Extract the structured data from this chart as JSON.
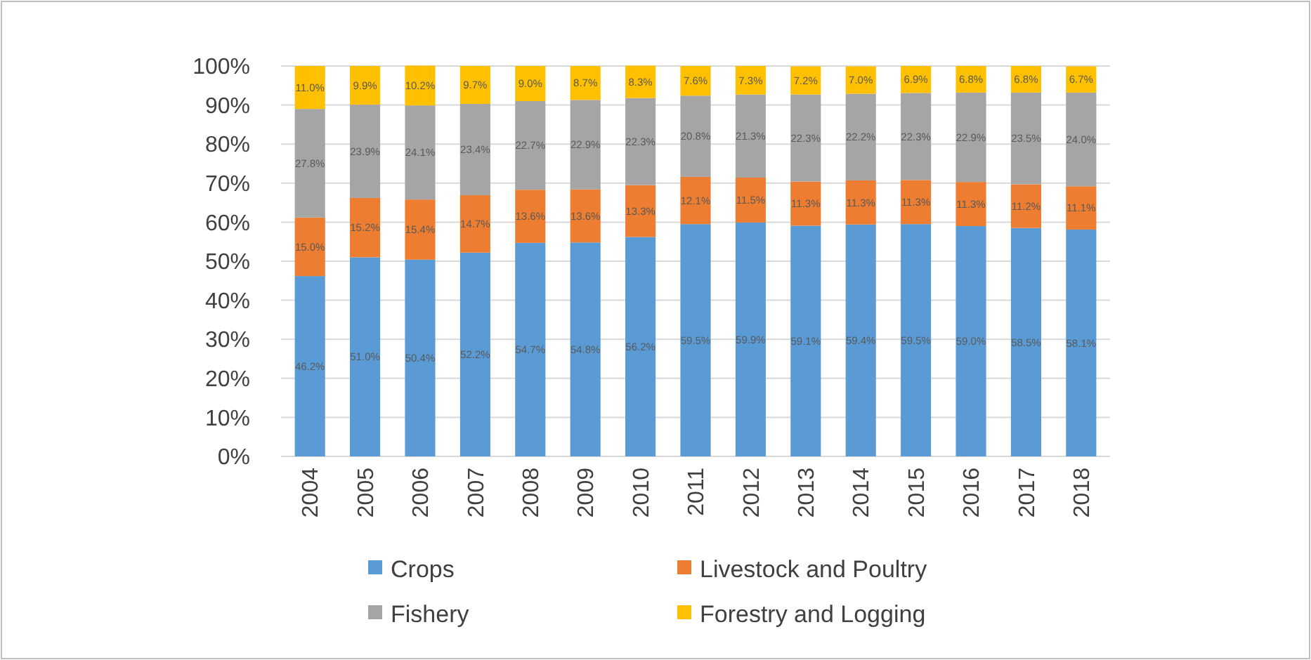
{
  "chart_data": {
    "type": "bar",
    "stacked": true,
    "categories": [
      "2004",
      "2005",
      "2006",
      "2007",
      "2008",
      "2009",
      "2010",
      "2011",
      "2012",
      "2013",
      "2014",
      "2015",
      "2016",
      "2017",
      "2018"
    ],
    "series": [
      {
        "name": "Crops",
        "color": "#5b9bd5",
        "values": [
          46.2,
          51.0,
          50.4,
          52.2,
          54.7,
          54.8,
          56.2,
          59.5,
          59.9,
          59.1,
          59.4,
          59.5,
          59.0,
          58.5,
          58.1
        ],
        "value_labels": [
          "46.2%",
          "51.0%",
          "50.4%",
          "52.2%",
          "54.7%",
          "54.8%",
          "56.2%",
          "59.5%",
          "59.9%",
          "59.1%",
          "59.4%",
          "59.5%",
          "59.0%",
          "58.5%",
          "58.1%"
        ]
      },
      {
        "name": "Livestock and Poultry",
        "color": "#ed7d31",
        "values": [
          15.0,
          15.2,
          15.4,
          14.7,
          13.6,
          13.6,
          13.3,
          12.1,
          11.5,
          11.3,
          11.3,
          11.3,
          11.3,
          11.2,
          11.1
        ],
        "value_labels": [
          "15.0%",
          "15.2%",
          "15.4%",
          "14.7%",
          "13.6%",
          "13.6%",
          "13.3%",
          "12.1%",
          "11.5%",
          "11.3%",
          "11.3%",
          "11.3%",
          "11.3%",
          "11.2%",
          "11.1%"
        ]
      },
      {
        "name": "Fishery",
        "color": "#a5a5a5",
        "values": [
          27.8,
          23.9,
          24.1,
          23.4,
          22.7,
          22.9,
          22.3,
          20.8,
          21.3,
          22.3,
          22.2,
          22.3,
          22.9,
          23.5,
          24.0
        ],
        "value_labels": [
          "27.8%",
          "23.9%",
          "24.1%",
          "23.4%",
          "22.7%",
          "22.9%",
          "22.3%",
          "20.8%",
          "21.3%",
          "22.3%",
          "22.2%",
          "22.3%",
          "22.9%",
          "23.5%",
          "24.0%"
        ]
      },
      {
        "name": "Forestry and Logging",
        "color": "#ffc000",
        "values": [
          11.0,
          9.9,
          10.2,
          9.7,
          9.0,
          8.7,
          8.3,
          7.6,
          7.3,
          7.2,
          7.0,
          6.9,
          6.8,
          6.8,
          6.7
        ],
        "value_labels": [
          "11.0%",
          "9.9%",
          "10.2%",
          "9.7%",
          "9.0%",
          "8.7%",
          "8.3%",
          "7.6%",
          "7.3%",
          "7.2%",
          "7.0%",
          "6.9%",
          "6.8%",
          "6.8%",
          "6.7%"
        ]
      }
    ],
    "ylim": [
      0,
      100
    ],
    "yticks": [
      {
        "value": 0,
        "label": "0%"
      },
      {
        "value": 10,
        "label": "10%"
      },
      {
        "value": 20,
        "label": "20%"
      },
      {
        "value": 30,
        "label": "30%"
      },
      {
        "value": 40,
        "label": "40%"
      },
      {
        "value": 50,
        "label": "50%"
      },
      {
        "value": 60,
        "label": "60%"
      },
      {
        "value": 70,
        "label": "70%"
      },
      {
        "value": 80,
        "label": "80%"
      },
      {
        "value": 90,
        "label": "90%"
      },
      {
        "value": 100,
        "label": "100%"
      }
    ],
    "grid": "y",
    "legend": "bottom"
  }
}
